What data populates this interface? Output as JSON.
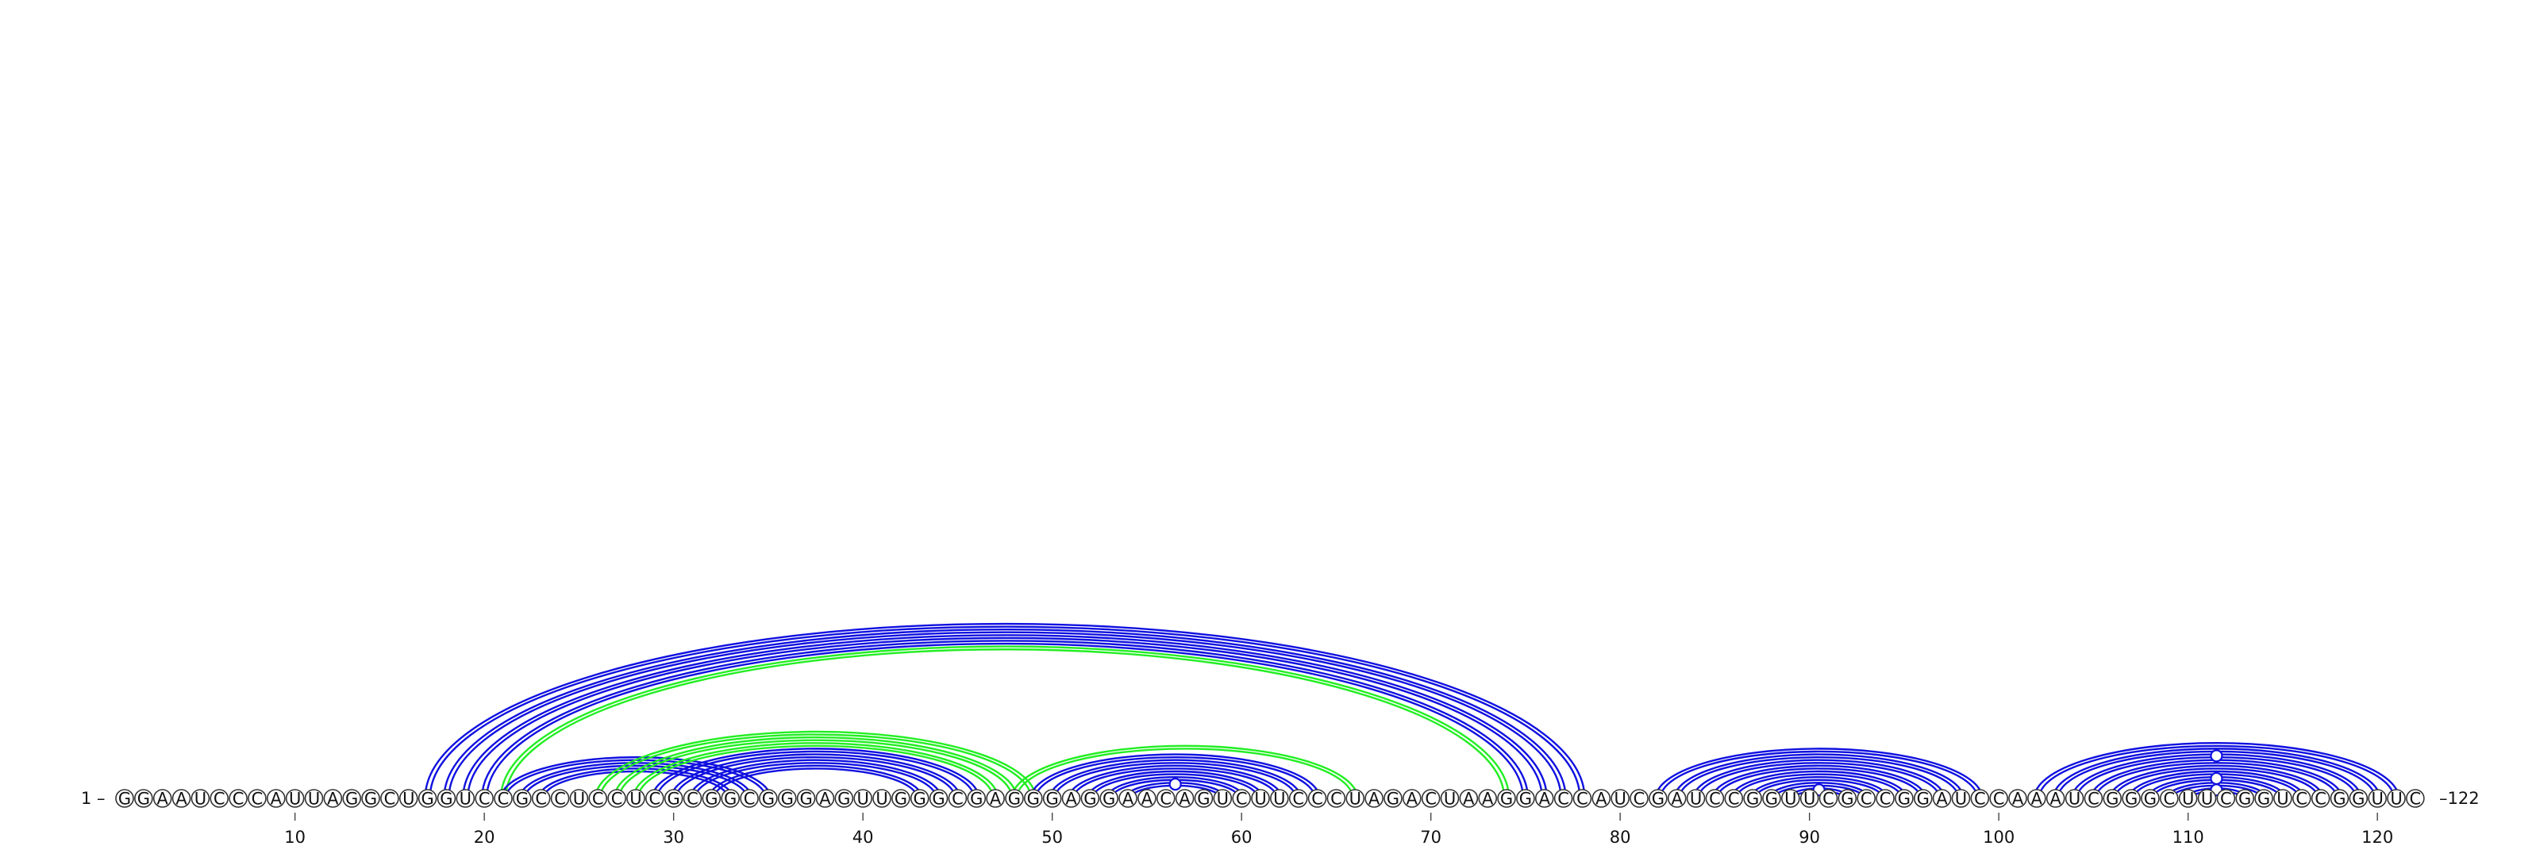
{
  "sequence": "GGAAUCCCAUUAGGCUGGUCCGCCUCCUCGCGGCGGGAGUUGGGCGAGGGAGGAACAGUCUUCCCUAGACUAAGGACCAUCGAUCCGGUUCGCCGGAUCCAAAUCGGGCUUCGGUCCGGUUC",
  "length": 122,
  "start_label": "1 –",
  "end_label": "–122",
  "tick_labels": [
    "10",
    "20",
    "30",
    "40",
    "50",
    "60",
    "70",
    "80",
    "90",
    "100",
    "110",
    "120"
  ],
  "tick_positions": [
    10,
    20,
    30,
    40,
    50,
    60,
    70,
    80,
    90,
    100,
    110,
    120
  ],
  "colors": {
    "canonical_pair": "#1010e0",
    "noncanonical_pair": "#22ee22",
    "base_outline": "#333333"
  },
  "pairs": [
    {
      "i": 17,
      "j": 78,
      "type": "canonical"
    },
    {
      "i": 18,
      "j": 77,
      "type": "canonical"
    },
    {
      "i": 19,
      "j": 76,
      "type": "canonical"
    },
    {
      "i": 20,
      "j": 75,
      "type": "canonical"
    },
    {
      "i": 21,
      "j": 74,
      "type": "noncanonical"
    },
    {
      "i": 21,
      "j": 35,
      "type": "canonical"
    },
    {
      "i": 22,
      "j": 34,
      "type": "canonical"
    },
    {
      "i": 23,
      "j": 33,
      "type": "canonical"
    },
    {
      "i": 26,
      "j": 49,
      "type": "noncanonical"
    },
    {
      "i": 27,
      "j": 48,
      "type": "noncanonical"
    },
    {
      "i": 28,
      "j": 47,
      "type": "noncanonical"
    },
    {
      "i": 29,
      "j": 46,
      "type": "canonical"
    },
    {
      "i": 30,
      "j": 45,
      "type": "canonical"
    },
    {
      "i": 31,
      "j": 44,
      "type": "canonical"
    },
    {
      "i": 32,
      "j": 43,
      "type": "canonical"
    },
    {
      "i": 48,
      "j": 66,
      "type": "noncanonical"
    },
    {
      "i": 49,
      "j": 64,
      "type": "canonical"
    },
    {
      "i": 50,
      "j": 63,
      "type": "canonical"
    },
    {
      "i": 51,
      "j": 62,
      "type": "canonical"
    },
    {
      "i": 52,
      "j": 61,
      "type": "canonical"
    },
    {
      "i": 53,
      "j": 60,
      "type": "canonical"
    },
    {
      "i": 54,
      "j": 59,
      "type": "canonical"
    },
    {
      "i": 82,
      "j": 99,
      "type": "canonical"
    },
    {
      "i": 83,
      "j": 98,
      "type": "canonical"
    },
    {
      "i": 84,
      "j": 97,
      "type": "canonical"
    },
    {
      "i": 85,
      "j": 96,
      "type": "canonical"
    },
    {
      "i": 86,
      "j": 95,
      "type": "canonical"
    },
    {
      "i": 87,
      "j": 94,
      "type": "canonical"
    },
    {
      "i": 88,
      "j": 93,
      "type": "canonical"
    },
    {
      "i": 89,
      "j": 92,
      "type": "canonical"
    },
    {
      "i": 102,
      "j": 121,
      "type": "canonical"
    },
    {
      "i": 103,
      "j": 120,
      "type": "canonical"
    },
    {
      "i": 104,
      "j": 119,
      "type": "canonical"
    },
    {
      "i": 105,
      "j": 118,
      "type": "canonical"
    },
    {
      "i": 106,
      "j": 117,
      "type": "canonical"
    },
    {
      "i": 107,
      "j": 116,
      "type": "canonical"
    },
    {
      "i": 108,
      "j": 115,
      "type": "canonical"
    },
    {
      "i": 109,
      "j": 114,
      "type": "canonical"
    },
    {
      "i": 110,
      "j": 113,
      "type": "canonical"
    }
  ],
  "arc_markers": [
    {
      "i": 54,
      "j": 59
    },
    {
      "i": 89,
      "j": 92
    },
    {
      "i": 104,
      "j": 119
    },
    {
      "i": 108,
      "j": 115
    },
    {
      "i": 110,
      "j": 113
    }
  ]
}
